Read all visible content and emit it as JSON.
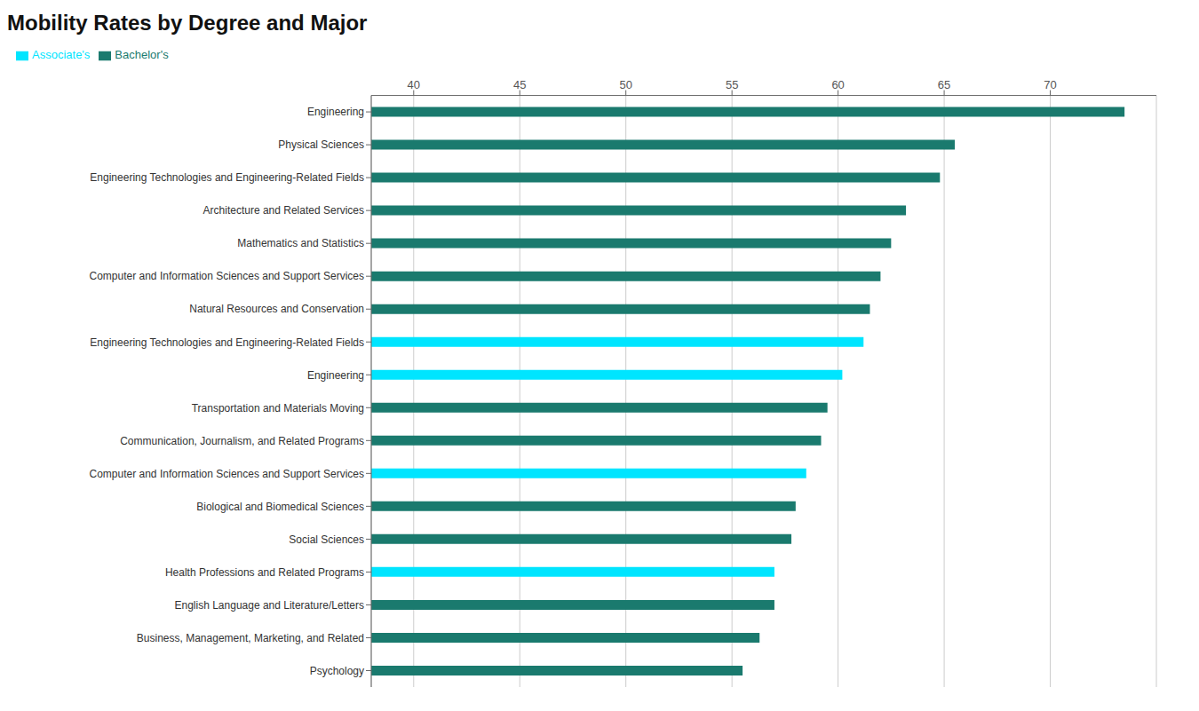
{
  "chart_data": {
    "type": "bar",
    "title": "Mobility Rates  by Degree and Major",
    "orientation": "horizontal",
    "categories": [
      "Engineering",
      "Physical Sciences",
      "Engineering Technologies and Engineering-Related Fields",
      "Architecture and Related Services",
      "Mathematics and Statistics",
      "Computer and Information Sciences and Support Services",
      "Natural Resources and Conservation",
      "Engineering Technologies and Engineering-Related Fields",
      "Engineering",
      "Transportation and Materials Moving",
      "Communication, Journalism, and Related Programs",
      "Computer and Information Sciences and Support Services",
      "Biological and Biomedical Sciences",
      "Social Sciences",
      "Health Professions and Related Programs",
      "English Language and Literature/Letters",
      "Business, Management, Marketing, and Related",
      "Psychology"
    ],
    "series": [
      {
        "name": "Bachelor's",
        "color": "#1a7a6e",
        "values": [
          73.5,
          65.5,
          64.8,
          63.2,
          62.5,
          62.0,
          61.5,
          null,
          null,
          59.5,
          59.2,
          null,
          58.0,
          57.8,
          null,
          57.0,
          56.3,
          55.5
        ]
      },
      {
        "name": "Associate's",
        "color": "#00e5ff",
        "values": [
          null,
          null,
          null,
          null,
          null,
          null,
          null,
          61.2,
          60.2,
          null,
          null,
          58.5,
          null,
          null,
          57.0,
          null,
          null,
          null
        ]
      }
    ],
    "xlim": [
      38,
      75
    ],
    "xticks": [
      40,
      45,
      50,
      55,
      60,
      65,
      70
    ],
    "grid": true,
    "legend": "upper left"
  }
}
